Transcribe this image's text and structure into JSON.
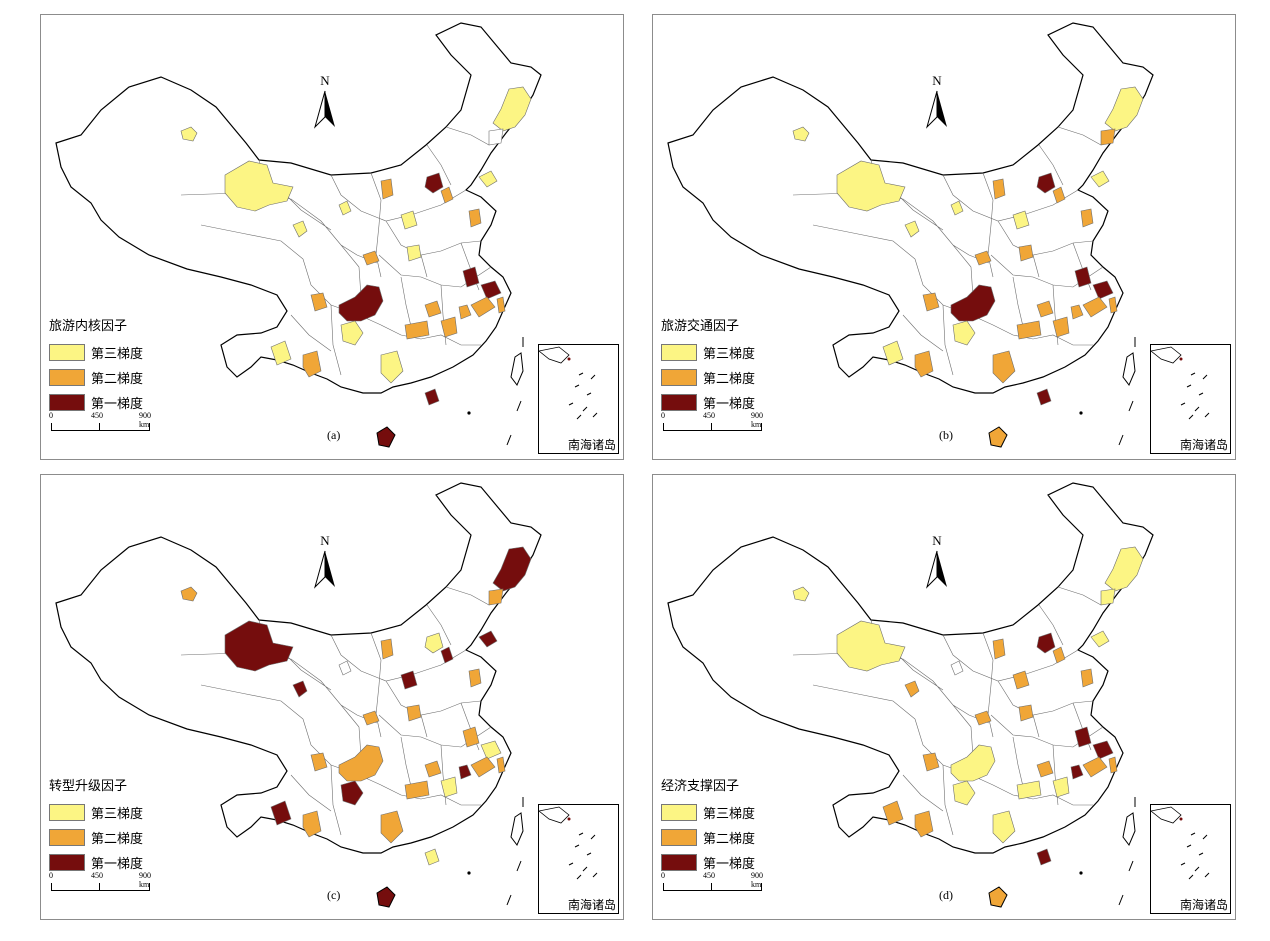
{
  "colors": {
    "third": "#fcf584",
    "second": "#f0a637",
    "first": "#750d0d",
    "none": "#ffffff",
    "border": "#6e6e6e",
    "outline": "#000000"
  },
  "scale": {
    "t0": "0",
    "t1": "450",
    "t2": "900 km"
  },
  "inset_caption": "南海诸岛",
  "north_label": "N",
  "legend_labels": {
    "third": "第三梯度",
    "second": "第二梯度",
    "first": "第一梯度"
  },
  "panels": [
    {
      "id": "a",
      "title": "旅游内核因子",
      "label": "(a)",
      "regions": {
        "xinjiang_north": "third",
        "urumqi": "third",
        "qinghai_w": "third",
        "gansu_w": "third",
        "heilongjiang": "third",
        "jilin": "none",
        "beijing": "first",
        "tianjin": "second",
        "shandong": "second",
        "shanxi": "second",
        "hebei_s": "third",
        "shaanxi": "second",
        "henan": "third",
        "chongqing": "first",
        "sichuan_e": "third",
        "sichuan_w": "second",
        "yunnan": "third",
        "guizhou": "second",
        "hunan": "second",
        "guangxi": "third",
        "guangdong": "first",
        "jiangxi": "second",
        "fujian": "second",
        "zhejiang": "second",
        "shanghai": "first",
        "jiangsu": "first",
        "anhui": "second",
        "hainan": "first",
        "hubei": "second",
        "liaoning": "third"
      }
    },
    {
      "id": "b",
      "title": "旅游交通因子",
      "label": "(b)",
      "regions": {
        "xinjiang_north": "third",
        "urumqi": "third",
        "qinghai_w": "third",
        "gansu_w": "third",
        "heilongjiang": "third",
        "jilin": "second",
        "beijing": "first",
        "tianjin": "second",
        "shandong": "second",
        "shanxi": "second",
        "hebei_s": "third",
        "shaanxi": "second",
        "henan": "second",
        "chongqing": "first",
        "sichuan_e": "third",
        "sichuan_w": "second",
        "yunnan": "third",
        "guizhou": "second",
        "hunan": "second",
        "guangxi": "second",
        "guangdong": "first",
        "jiangxi": "second",
        "fujian": "second",
        "zhejiang": "second",
        "shanghai": "first",
        "jiangsu": "first",
        "anhui": "second",
        "hainan": "second",
        "hubei": "second",
        "liaoning": "third"
      }
    },
    {
      "id": "c",
      "title": "转型升级因子",
      "label": "(c)",
      "regions": {
        "xinjiang_north": "first",
        "urumqi": "second",
        "qinghai_w": "first",
        "gansu_w": "none",
        "heilongjiang": "first",
        "jilin": "second",
        "beijing": "third",
        "tianjin": "first",
        "shandong": "second",
        "shanxi": "second",
        "hebei_s": "first",
        "shaanxi": "second",
        "henan": "second",
        "chongqing": "second",
        "sichuan_e": "first",
        "sichuan_w": "second",
        "yunnan": "first",
        "guizhou": "second",
        "hunan": "second",
        "guangxi": "second",
        "guangdong": "third",
        "jiangxi": "third",
        "fujian": "second",
        "zhejiang": "second",
        "shanghai": "third",
        "jiangsu": "second",
        "anhui": "first",
        "hainan": "first",
        "hubei": "second",
        "liaoning": "first"
      }
    },
    {
      "id": "d",
      "title": "经济支撑因子",
      "label": "(d)",
      "regions": {
        "xinjiang_north": "third",
        "urumqi": "third",
        "qinghai_w": "second",
        "gansu_w": "none",
        "heilongjiang": "third",
        "jilin": "third",
        "beijing": "first",
        "tianjin": "second",
        "shandong": "second",
        "shanxi": "second",
        "hebei_s": "second",
        "shaanxi": "second",
        "henan": "second",
        "chongqing": "third",
        "sichuan_e": "third",
        "sichuan_w": "second",
        "yunnan": "second",
        "guizhou": "second",
        "hunan": "third",
        "guangxi": "third",
        "guangdong": "first",
        "jiangxi": "third",
        "fujian": "second",
        "zhejiang": "second",
        "shanghai": "first",
        "jiangsu": "first",
        "anhui": "first",
        "hainan": "second",
        "hubei": "second",
        "liaoning": "third"
      }
    }
  ]
}
